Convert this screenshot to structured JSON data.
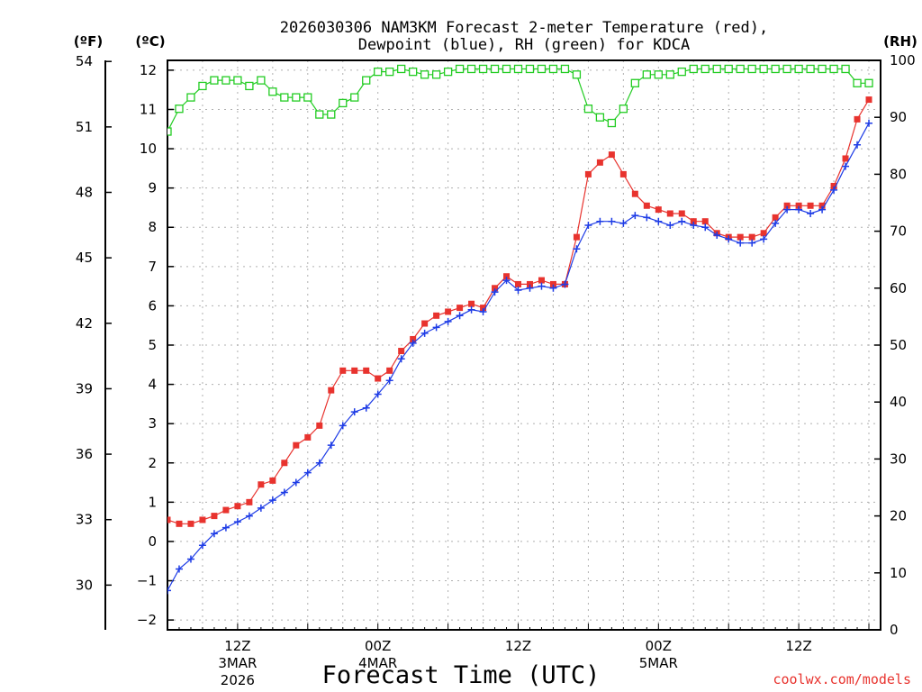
{
  "chart_data": {
    "type": "line",
    "title": "2026030306 NAM3KM Forecast 2-meter Temperature (red),",
    "subtitle": "Dewpoint (blue), RH (green) for KDCA",
    "xlabel": "Forecast Time (UTC)",
    "credit": "coolwx.com/models",
    "axis_units": {
      "fahrenheit": "(ºF)",
      "celsius": "(ºC)",
      "rh": "(RH)"
    },
    "celsius_axis": {
      "ylim": [
        -2.25,
        12.25
      ],
      "ticks": [
        "−2",
        "−1",
        "0",
        "1",
        "2",
        "3",
        "4",
        "5",
        "6",
        "7",
        "8",
        "9",
        "10",
        "11",
        "12"
      ],
      "tick_values": [
        -2,
        -1,
        0,
        1,
        2,
        3,
        4,
        5,
        6,
        7,
        8,
        9,
        10,
        11,
        12
      ]
    },
    "fahrenheit_axis": {
      "ylim": [
        27.95,
        54.05
      ],
      "ticks": [
        "30",
        "33",
        "36",
        "39",
        "42",
        "45",
        "48",
        "51",
        "54"
      ],
      "tick_values": [
        30,
        33,
        36,
        39,
        42,
        45,
        48,
        51,
        54
      ]
    },
    "rh_axis": {
      "ylim": [
        0,
        100
      ],
      "ticks": [
        "0",
        "10",
        "20",
        "30",
        "40",
        "50",
        "60",
        "70",
        "80",
        "90",
        "100"
      ],
      "tick_values": [
        0,
        10,
        20,
        30,
        40,
        50,
        60,
        70,
        80,
        90,
        100
      ]
    },
    "x_axis": {
      "start_hour": 6,
      "end_hour": 67,
      "unit": "hours since 2026-03-03 00Z"
    },
    "x_ticks": [
      {
        "hour": 12,
        "label": "12Z",
        "date": "3MAR",
        "year": "2026"
      },
      {
        "hour": 24,
        "label": "00Z",
        "date": "4MAR",
        "year": ""
      },
      {
        "hour": 36,
        "label": "12Z",
        "date": "",
        "year": ""
      },
      {
        "hour": 48,
        "label": "00Z",
        "date": "5MAR",
        "year": ""
      },
      {
        "hour": 60,
        "label": "12Z",
        "date": "",
        "year": ""
      }
    ],
    "series": [
      {
        "name": "Temperature",
        "units": "°C",
        "axis": "celsius",
        "color": "#e8332e",
        "marker": "filled-square",
        "values": [
          0.55,
          0.45,
          0.45,
          0.55,
          0.65,
          0.8,
          0.9,
          1.0,
          1.45,
          1.55,
          2.0,
          2.45,
          2.65,
          2.95,
          3.85,
          4.35,
          4.35,
          4.35,
          4.15,
          4.35,
          4.85,
          5.15,
          5.55,
          5.75,
          5.85,
          5.95,
          6.05,
          5.95,
          6.45,
          6.75,
          6.55,
          6.55,
          6.65,
          6.55,
          6.55,
          7.75,
          9.35,
          9.65,
          9.85,
          9.35,
          8.85,
          8.55,
          8.45,
          8.35,
          8.35,
          8.15,
          8.15,
          7.85,
          7.75,
          7.75,
          7.75,
          7.85,
          8.25,
          8.55,
          8.55,
          8.55,
          8.55,
          9.05,
          9.75,
          10.75,
          11.25
        ]
      },
      {
        "name": "Dewpoint",
        "units": "°C",
        "axis": "celsius",
        "color": "#1e3ce6",
        "marker": "plus",
        "values": [
          -1.25,
          -0.7,
          -0.45,
          -0.1,
          0.2,
          0.35,
          0.5,
          0.65,
          0.85,
          1.05,
          1.25,
          1.5,
          1.75,
          2.0,
          2.45,
          2.95,
          3.3,
          3.4,
          3.75,
          4.1,
          4.65,
          5.05,
          5.3,
          5.45,
          5.6,
          5.75,
          5.9,
          5.85,
          6.35,
          6.65,
          6.4,
          6.45,
          6.5,
          6.45,
          6.55,
          7.45,
          8.05,
          8.15,
          8.15,
          8.1,
          8.3,
          8.25,
          8.15,
          8.05,
          8.15,
          8.05,
          8.0,
          7.8,
          7.7,
          7.6,
          7.6,
          7.7,
          8.1,
          8.45,
          8.45,
          8.35,
          8.45,
          8.95,
          9.55,
          10.1,
          10.65
        ]
      },
      {
        "name": "RH",
        "units": "%",
        "axis": "rh",
        "color": "#22cc22",
        "marker": "open-square",
        "values": [
          87.5,
          91.5,
          93.5,
          95.5,
          96.5,
          96.5,
          96.5,
          95.5,
          96.5,
          94.5,
          93.5,
          93.5,
          93.5,
          90.5,
          90.5,
          92.5,
          93.5,
          96.5,
          98.0,
          98.0,
          98.5,
          98.0,
          97.5,
          97.5,
          98.0,
          98.5,
          98.5,
          98.5,
          98.5,
          98.5,
          98.5,
          98.5,
          98.5,
          98.5,
          98.5,
          97.5,
          91.5,
          90.0,
          89.0,
          91.5,
          96.0,
          97.5,
          97.5,
          97.5,
          98.0,
          98.5,
          98.5,
          98.5,
          98.5,
          98.5,
          98.5,
          98.5,
          98.5,
          98.5,
          98.5,
          98.5,
          98.5,
          98.5,
          98.5,
          96.0,
          96.0
        ]
      }
    ]
  }
}
